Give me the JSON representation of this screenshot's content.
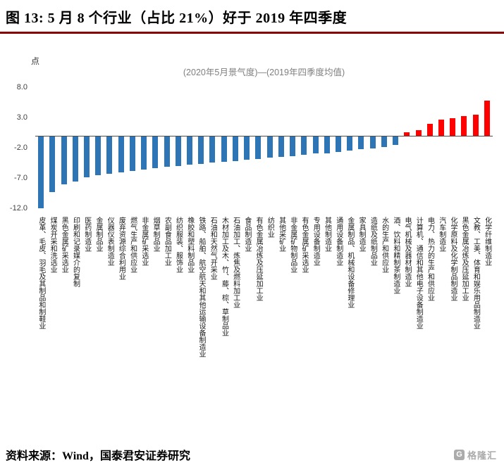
{
  "header": {
    "title": "图 13: 5 月 8 个行业（占比 21%）好于 2019 年四季度"
  },
  "chart_data": {
    "type": "bar",
    "title": "(2020年5月景气度)—(2019年四季度均值)",
    "ylabel": "点",
    "xlabel": "",
    "yticks": [
      8.0,
      3.0,
      -2.0,
      -7.0,
      -12.0
    ],
    "ylim": [
      -12.5,
      8.0
    ],
    "grid": false,
    "legend": "none",
    "colors": {
      "negative_bar": "#2E75B6",
      "positive_bar": "#FF0000"
    },
    "categories": [
      "皮革、毛皮、羽毛及其制品和制鞋业",
      "煤炭开采和洗选业",
      "黑色金属矿采选业",
      "印刷和记录媒介的复制",
      "医药制造业",
      "金属制品业",
      "仪器仪表制造业",
      "废弃资源综合利用业",
      "燃气生产和供应业",
      "非金属矿采选业",
      "烟草制品业",
      "农副食品加工业",
      "纺织服装、服饰业",
      "橡胶和塑料制品业",
      "铁路、船舶、航空航天和其他运输设备制造业",
      "石油和天然气开采业",
      "木材加工及木、竹、藤、棕、草制品业",
      "石油加工、炼焦及燃料加工业",
      "食品制造业",
      "有色金属冶炼及压延加工业",
      "纺织业",
      "其他采矿业",
      "非金属矿物制品业",
      "有色金属矿采选业",
      "专用设备制造业",
      "其他制造业",
      "通用设备制造业",
      "金属制品、机械和设备修理业",
      "家具制造业",
      "造纸及纸制品业",
      "水的生产和供应业",
      "酒、饮料和精制茶制造业",
      "电气机械及器材制造业",
      "计算机、通信和其他电子设备制造业",
      "电力、热力的生产和供应业",
      "汽车制造业",
      "化学原料及化学制品制造业",
      "黑色金属冶炼及压延加工业",
      "文教、工美、体育和娱乐用品制造业",
      "化学纤维制造业"
    ],
    "values": [
      -12.0,
      -9.3,
      -8.1,
      -7.6,
      -6.9,
      -6.6,
      -6.3,
      -6.1,
      -5.9,
      -5.6,
      -5.4,
      -5.2,
      -5.0,
      -4.8,
      -4.7,
      -4.5,
      -4.3,
      -4.2,
      -4.0,
      -3.9,
      -3.7,
      -3.5,
      -3.4,
      -3.2,
      -3.0,
      -2.9,
      -2.7,
      -2.5,
      -2.3,
      -2.1,
      -1.9,
      -1.6,
      0.5,
      0.9,
      1.9,
      2.6,
      2.9,
      3.2,
      3.5,
      5.8
    ]
  },
  "footer": {
    "source_label": "资料来源：Wind，国泰君安证券研究",
    "watermark_logo_letter": "G",
    "watermark_text": "格隆汇"
  },
  "accent_color": "#8B0000"
}
